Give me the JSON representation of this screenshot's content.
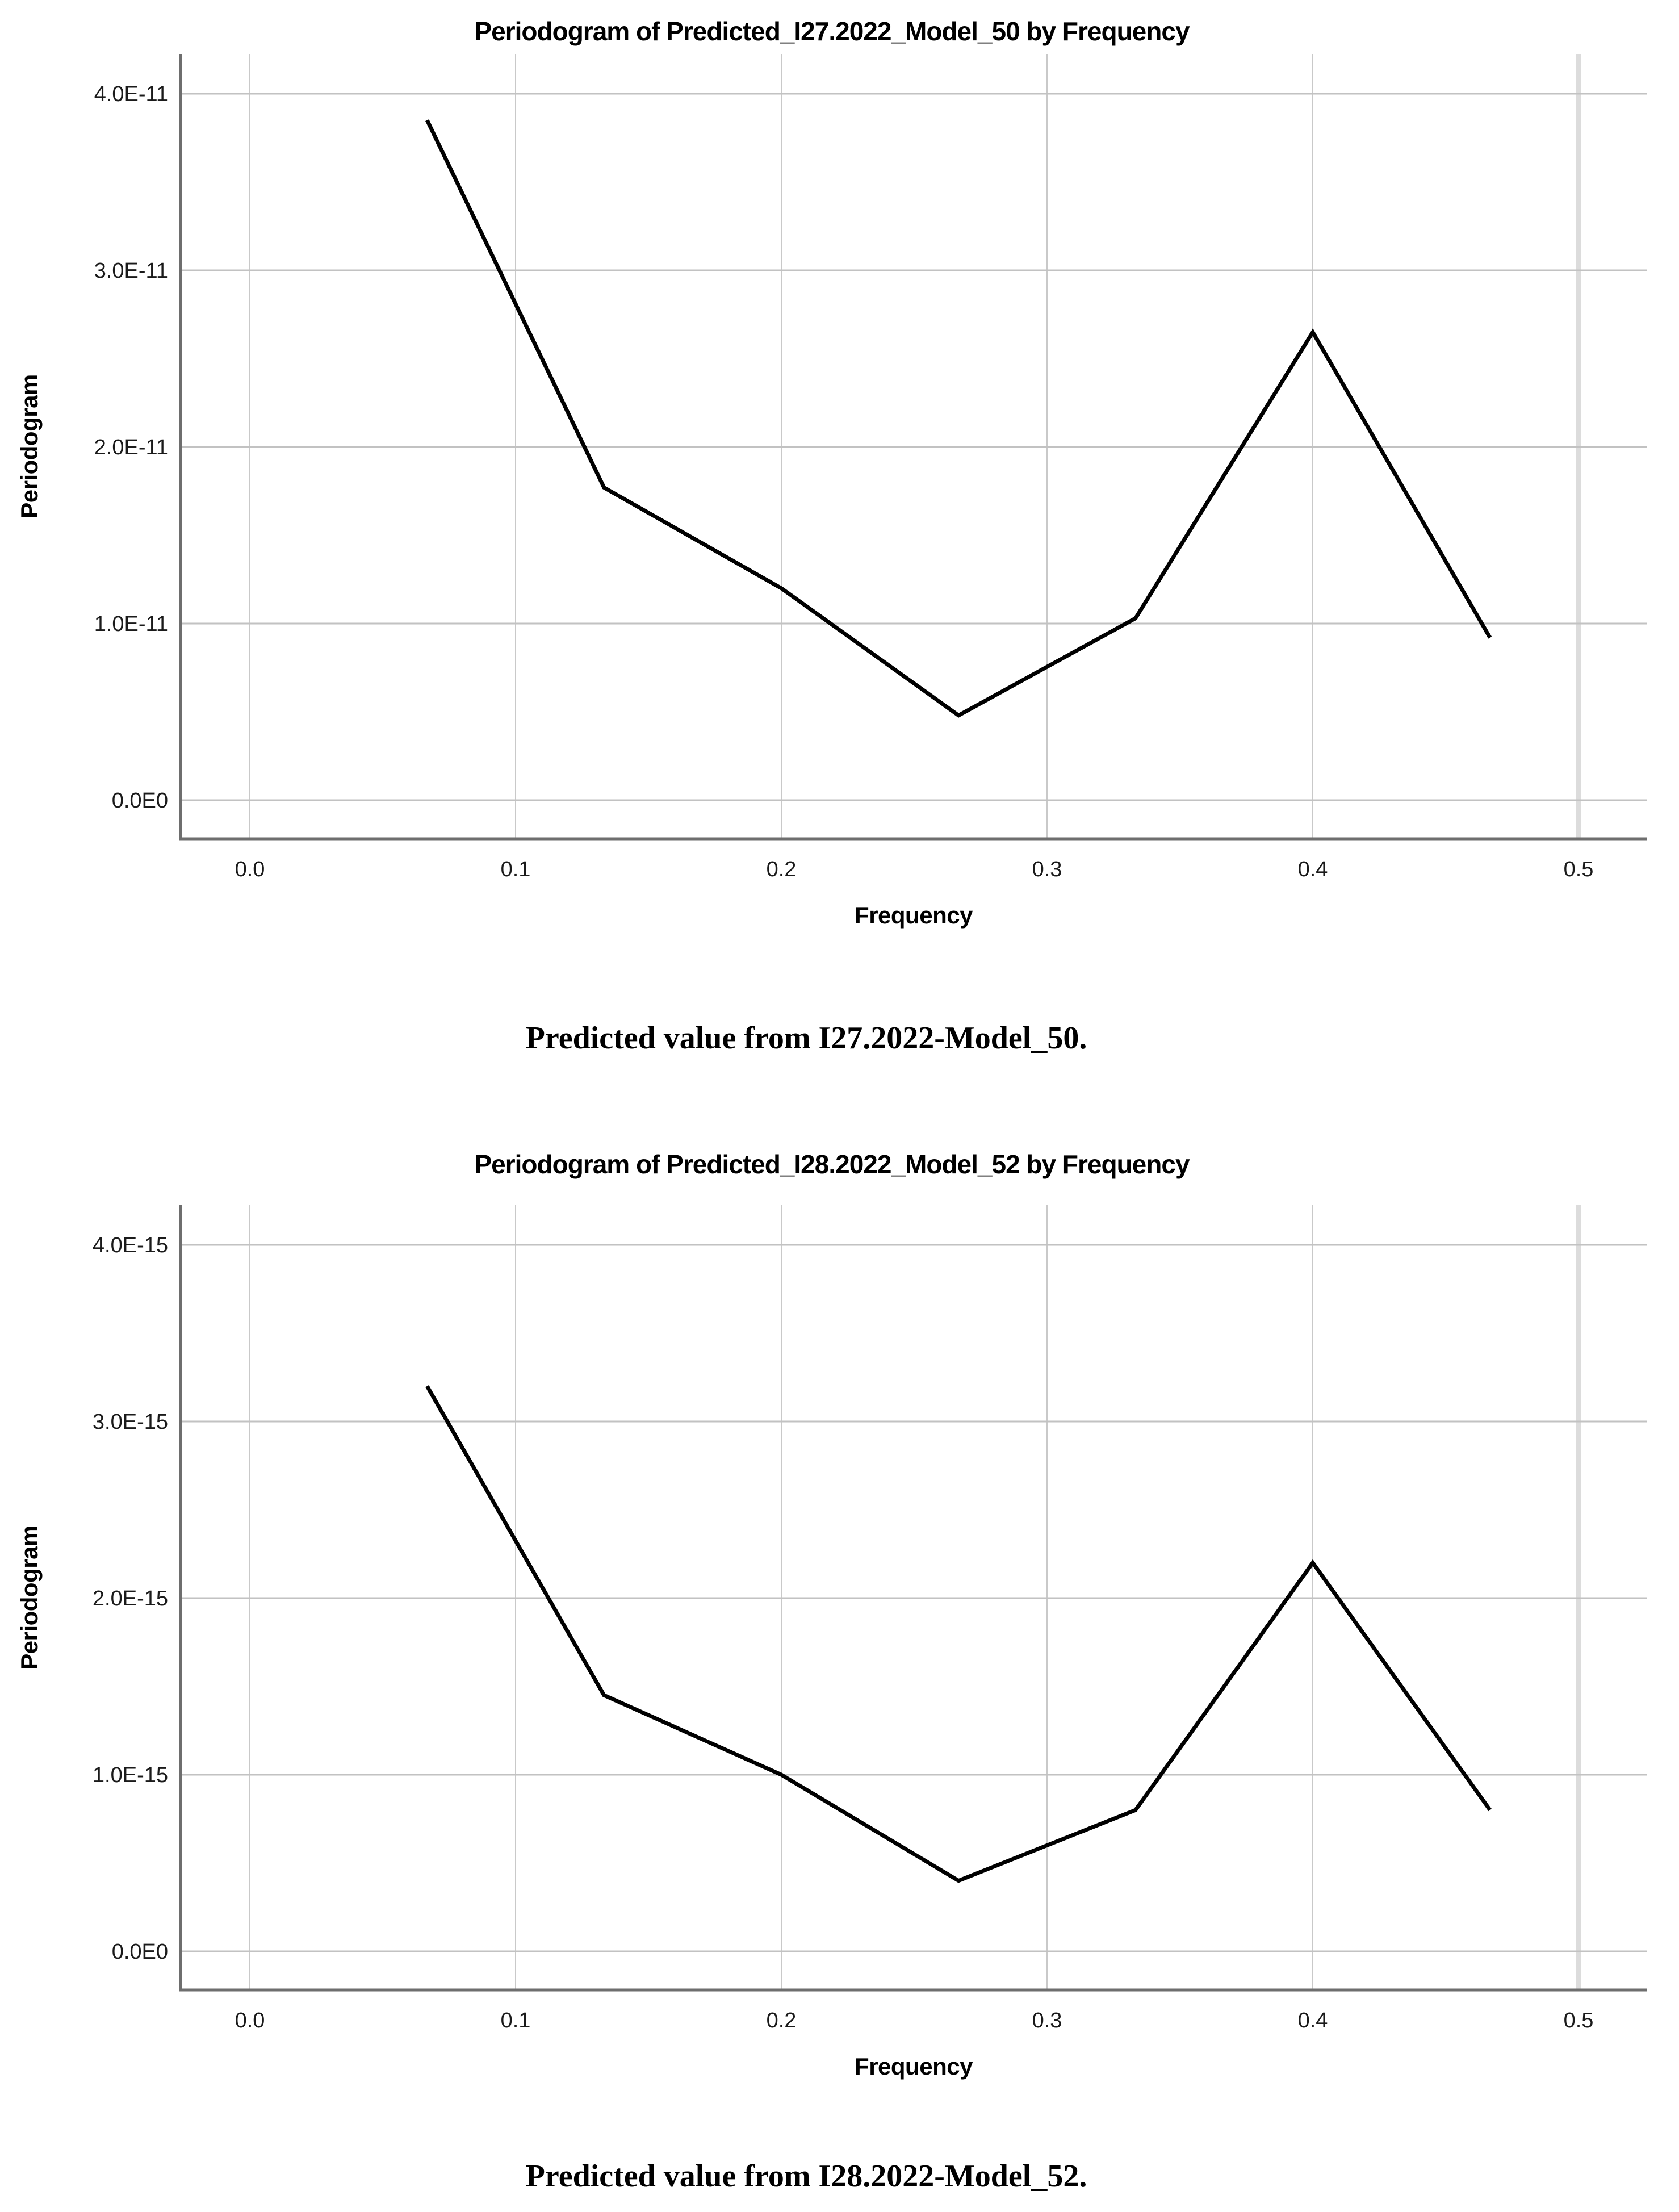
{
  "page": {
    "background": "#ffffff",
    "type": "two stacked SPSS periodogram figures with serif captions"
  },
  "colors": {
    "line": "#000000",
    "axis": "#6e6e6e",
    "grid_horizontal": "#c2c2c2",
    "grid_vertical": "#c9c9c9",
    "grid_vertical_last": "#dcdcdc",
    "tick_text": "#1a1a1a",
    "text": "#000000"
  },
  "chart_data": [
    {
      "type": "line",
      "title": "Periodogram of Predicted_I27.2022_Model_50 by Frequency",
      "xlabel": "Frequency",
      "ylabel": "Periodogram",
      "caption": "Predicted value from I27.2022-Model_50.",
      "x": [
        0.0667,
        0.1333,
        0.2,
        0.2667,
        0.3333,
        0.4,
        0.4667
      ],
      "y": [
        3.85e-11,
        1.77e-11,
        1.2e-11,
        4.8e-12,
        1.03e-11,
        2.65e-11,
        9.2e-12
      ],
      "xticks": [
        "0.0",
        "0.1",
        "0.2",
        "0.3",
        "0.4",
        "0.5"
      ],
      "xtick_values": [
        0.0,
        0.1,
        0.2,
        0.3,
        0.4,
        0.5
      ],
      "yticks": [
        "0.0E0",
        "1.0E-11",
        "2.0E-11",
        "3.0E-11",
        "4.0E-11"
      ],
      "ytick_step": 1e-11,
      "xlim": [
        -0.027,
        0.526
      ],
      "ylim": [
        -2.2e-12,
        4.25e-11
      ],
      "grid": true,
      "legend": "none",
      "line_color": "#000000"
    },
    {
      "type": "line",
      "title": "Periodogram of Predicted_I28.2022_Model_52 by Frequency",
      "xlabel": "Frequency",
      "ylabel": "Periodogram",
      "caption": "Predicted value from I28.2022-Model_52.",
      "x": [
        0.0667,
        0.1333,
        0.2,
        0.2667,
        0.3333,
        0.4,
        0.4667
      ],
      "y": [
        3.2e-15,
        1.45e-15,
        1e-15,
        4e-16,
        8e-16,
        2.2e-15,
        8e-16
      ],
      "xticks": [
        "0.0",
        "0.1",
        "0.2",
        "0.3",
        "0.4",
        "0.5"
      ],
      "xtick_values": [
        0.0,
        0.1,
        0.2,
        0.3,
        0.4,
        0.5
      ],
      "yticks": [
        "0.0E0",
        "1.0E-15",
        "2.0E-15",
        "3.0E-15",
        "4.0E-15"
      ],
      "ytick_step": 1e-15,
      "xlim": [
        -0.027,
        0.526
      ],
      "ylim": [
        -2.2e-16,
        4.25e-15
      ],
      "grid": true,
      "legend": "none",
      "line_color": "#000000"
    }
  ]
}
